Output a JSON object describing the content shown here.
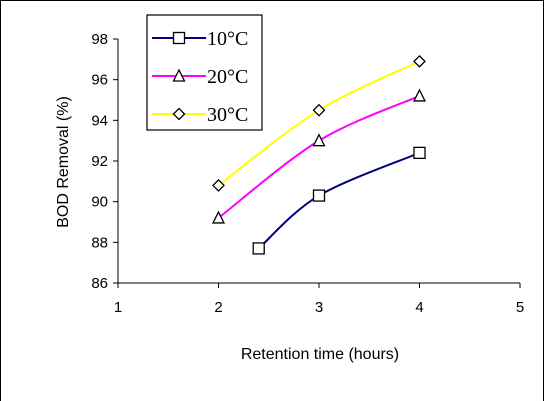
{
  "chart_data": {
    "type": "line",
    "xlabel": "Retention time (hours)",
    "ylabel": "BOD Removal (%)",
    "xlim": [
      1,
      5
    ],
    "ylim": [
      86,
      98
    ],
    "x_ticks": [
      "1",
      "2",
      "3",
      "4",
      "5"
    ],
    "y_ticks": [
      "86",
      "88",
      "90",
      "92",
      "94",
      "96",
      "98"
    ],
    "grid": false,
    "legend_position": "top-left",
    "series": [
      {
        "name": "10°C",
        "color": "#000080",
        "marker": "square",
        "x": [
          2.4,
          3,
          4
        ],
        "y": [
          87.7,
          90.3,
          92.4
        ]
      },
      {
        "name": "20°C",
        "color": "#ff00ff",
        "marker": "triangle",
        "x": [
          2,
          3,
          4
        ],
        "y": [
          89.2,
          93.0,
          95.2
        ]
      },
      {
        "name": "30°C",
        "color": "#ffff00",
        "marker": "diamond",
        "x": [
          2,
          3,
          4
        ],
        "y": [
          90.8,
          94.5,
          96.9
        ]
      }
    ]
  }
}
